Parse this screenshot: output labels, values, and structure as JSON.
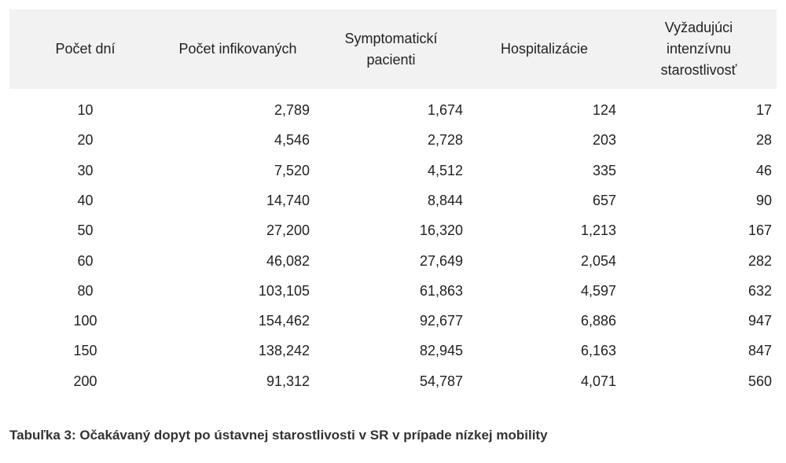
{
  "table": {
    "header": [
      "Počet dní",
      "Počet infikovaných",
      "Symptomatickí pacienti",
      "Hospitalizácie",
      "Vyžadujúci intenzívnu starostlivosť"
    ],
    "rows": [
      [
        "10",
        "2,789",
        "1,674",
        "124",
        "17"
      ],
      [
        "20",
        "4,546",
        "2,728",
        "203",
        "28"
      ],
      [
        "30",
        "7,520",
        "4,512",
        "335",
        "46"
      ],
      [
        "40",
        "14,740",
        "8,844",
        "657",
        "90"
      ],
      [
        "50",
        "27,200",
        "16,320",
        "1,213",
        "167"
      ],
      [
        "60",
        "46,082",
        "27,649",
        "2,054",
        "282"
      ],
      [
        "80",
        "103,105",
        "61,863",
        "4,597",
        "632"
      ],
      [
        "100",
        "154,462",
        "92,677",
        "6,886",
        "947"
      ],
      [
        "150",
        "138,242",
        "82,945",
        "6,163",
        "847"
      ],
      [
        "200",
        "91,312",
        "54,787",
        "4,071",
        "560"
      ]
    ]
  },
  "caption": "Tabuľka 3: Očakávaný dopyt po ústavnej starostlivosti v SR v prípade nízkej mobility"
}
